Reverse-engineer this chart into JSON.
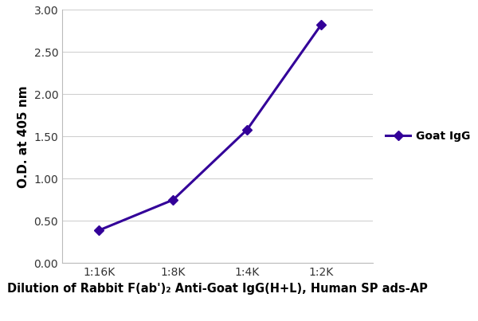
{
  "x_values": [
    1,
    2,
    3,
    4
  ],
  "x_tick_labels": [
    "1:16K",
    "1:8K",
    "1:4K",
    "1:2K"
  ],
  "y_values": [
    0.39,
    0.75,
    1.58,
    2.82
  ],
  "ylim": [
    0,
    3.0
  ],
  "yticks": [
    0.0,
    0.5,
    1.0,
    1.5,
    2.0,
    2.5,
    3.0
  ],
  "line_color": "#330099",
  "marker": "D",
  "marker_size": 6,
  "line_width": 2.2,
  "ylabel": "O.D. at 405 nm",
  "xlabel": "Dilution of Rabbit F(ab')₂ Anti-Goat IgG(H+L), Human SP ads-AP",
  "legend_label": "Goat IgG",
  "grid_color": "#d0d0d0",
  "background_color": "#ffffff",
  "ylabel_fontsize": 11,
  "xlabel_fontsize": 10.5,
  "tick_fontsize": 10,
  "legend_fontsize": 10
}
